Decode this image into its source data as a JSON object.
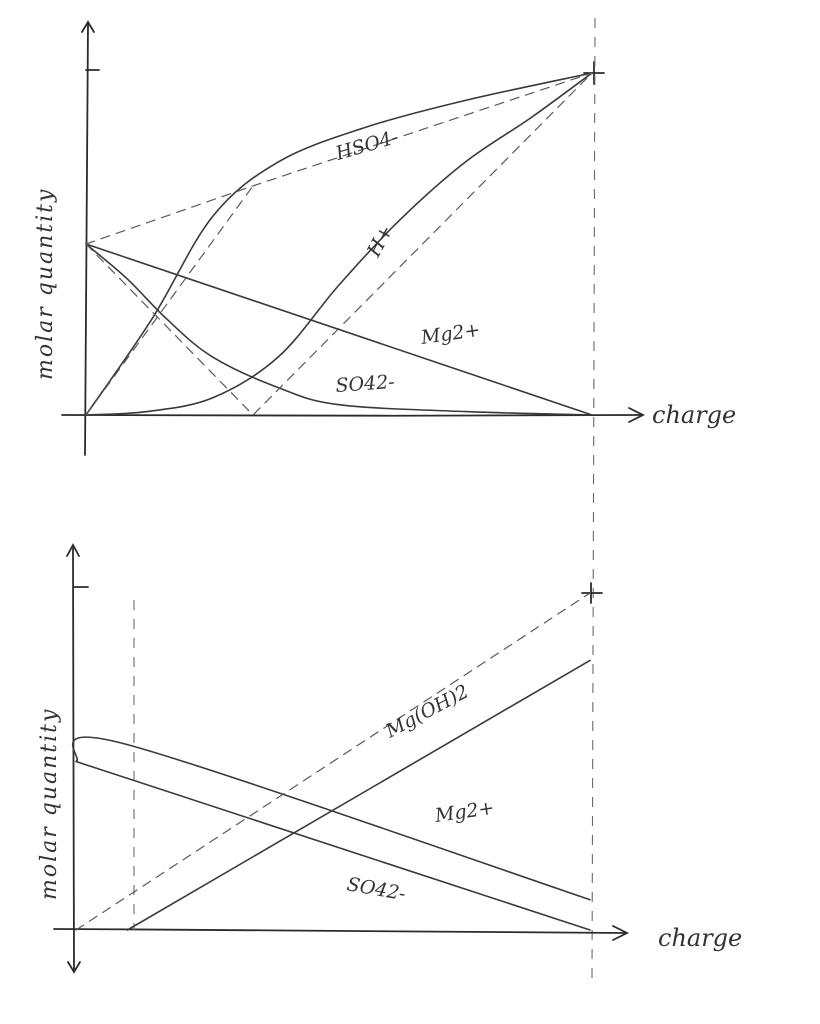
{
  "chart_data": [
    {
      "type": "line",
      "xlabel": "charge",
      "ylabel": "molar quantity",
      "series": [
        {
          "name": "HSO4-",
          "label": "HSO4-",
          "style": "solid",
          "points": [
            [
              0,
              0
            ],
            [
              0.13,
              0.28
            ],
            [
              0.25,
              0.58
            ],
            [
              0.38,
              0.74
            ],
            [
              0.55,
              0.84
            ],
            [
              0.75,
              0.92
            ],
            [
              1,
              1
            ]
          ]
        },
        {
          "name": "H+",
          "label": "H+",
          "style": "solid",
          "points": [
            [
              0,
              0
            ],
            [
              0.12,
              0.01
            ],
            [
              0.25,
              0.05
            ],
            [
              0.38,
              0.17
            ],
            [
              0.5,
              0.38
            ],
            [
              0.62,
              0.57
            ],
            [
              0.75,
              0.74
            ],
            [
              0.88,
              0.87
            ],
            [
              1,
              1
            ]
          ]
        },
        {
          "name": "Mg2+",
          "label": "Mg2+",
          "style": "solid",
          "points": [
            [
              0,
              0.5
            ],
            [
              1,
              0
            ]
          ]
        },
        {
          "name": "SO4 2-",
          "label": "SO42-",
          "style": "solid",
          "points": [
            [
              0,
              0.5
            ],
            [
              0.08,
              0.4
            ],
            [
              0.16,
              0.28
            ],
            [
              0.25,
              0.17
            ],
            [
              0.38,
              0.08
            ],
            [
              0.5,
              0.03
            ],
            [
              0.75,
              0.01
            ],
            [
              1,
              0
            ]
          ]
        },
        {
          "style": "dashed",
          "points": [
            [
              0,
              0.5
            ],
            [
              0.33,
              0.67
            ],
            [
              1,
              1
            ]
          ]
        },
        {
          "style": "dashed",
          "points": [
            [
              0,
              0
            ],
            [
              0.33,
              0.67
            ]
          ]
        },
        {
          "style": "dashed",
          "points": [
            [
              0,
              0.5
            ],
            [
              0.33,
              0
            ],
            [
              1,
              1
            ]
          ]
        }
      ]
    },
    {
      "type": "line",
      "xlabel": "charge",
      "ylabel": "molar quantity",
      "series": [
        {
          "name": "Mg(OH)2",
          "label": "Mg(OH)2",
          "style": "solid",
          "points": [
            [
              0.1,
              0
            ],
            [
              1,
              0.8
            ]
          ]
        },
        {
          "name": "Mg2+",
          "label": "Mg2+",
          "style": "solid",
          "points": [
            [
              0,
              0.5
            ],
            [
              0.1,
              0.55
            ],
            [
              1,
              0.09
            ]
          ]
        },
        {
          "name": "SO4 2-",
          "label": "SO42-",
          "style": "solid",
          "points": [
            [
              0,
              0.5
            ],
            [
              1,
              0
            ]
          ]
        },
        {
          "style": "dashed",
          "points": [
            [
              0,
              0
            ],
            [
              1,
              1
            ]
          ]
        }
      ]
    }
  ]
}
